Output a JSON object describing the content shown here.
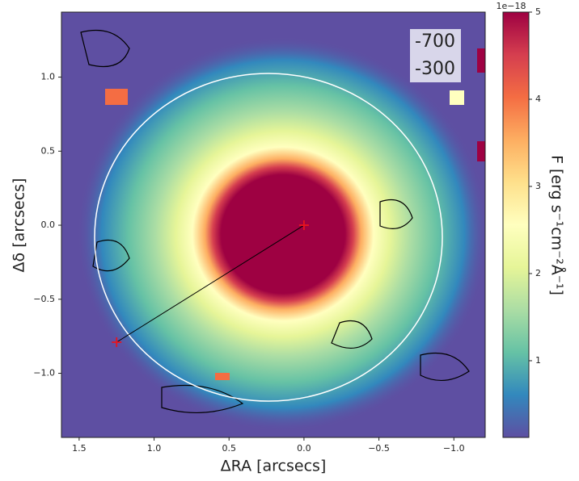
{
  "chart_data": {
    "type": "image",
    "xlabel": "ΔRA [arcsecs]",
    "ylabel": "Δδ [arcsecs]",
    "xlim": [
      1.618,
      -1.209
    ],
    "ylim": [
      -1.433,
      1.439
    ],
    "xticks": [
      1.5,
      {
        "value": 1,
        "label": "1.0"
      },
      0.5,
      {
        "value": 0,
        "label": "0.0"
      },
      {
        "value": -0.5,
        "label": "−0.5"
      },
      {
        "value": -1,
        "label": "−1.0"
      }
    ],
    "yticks": [
      {
        "value": 1,
        "label": "1.0"
      },
      0.5,
      {
        "value": 0,
        "label": "0.0"
      },
      {
        "value": -0.5,
        "label": "−0.5"
      },
      {
        "value": -1,
        "label": "−1.0"
      }
    ],
    "markers": {
      "x": [
        0,
        1.25
      ],
      "y": [
        0,
        -0.79
      ],
      "color": "#e8141e"
    },
    "annotations": [
      "-700",
      "-300"
    ],
    "colorbar": {
      "label": "F [erg s⁻¹cm⁻²Å⁻¹]",
      "offset_label": "1e−18",
      "lim": [
        0.12,
        5
      ],
      "ticks": [
        1,
        2,
        3,
        4,
        5
      ]
    }
  }
}
